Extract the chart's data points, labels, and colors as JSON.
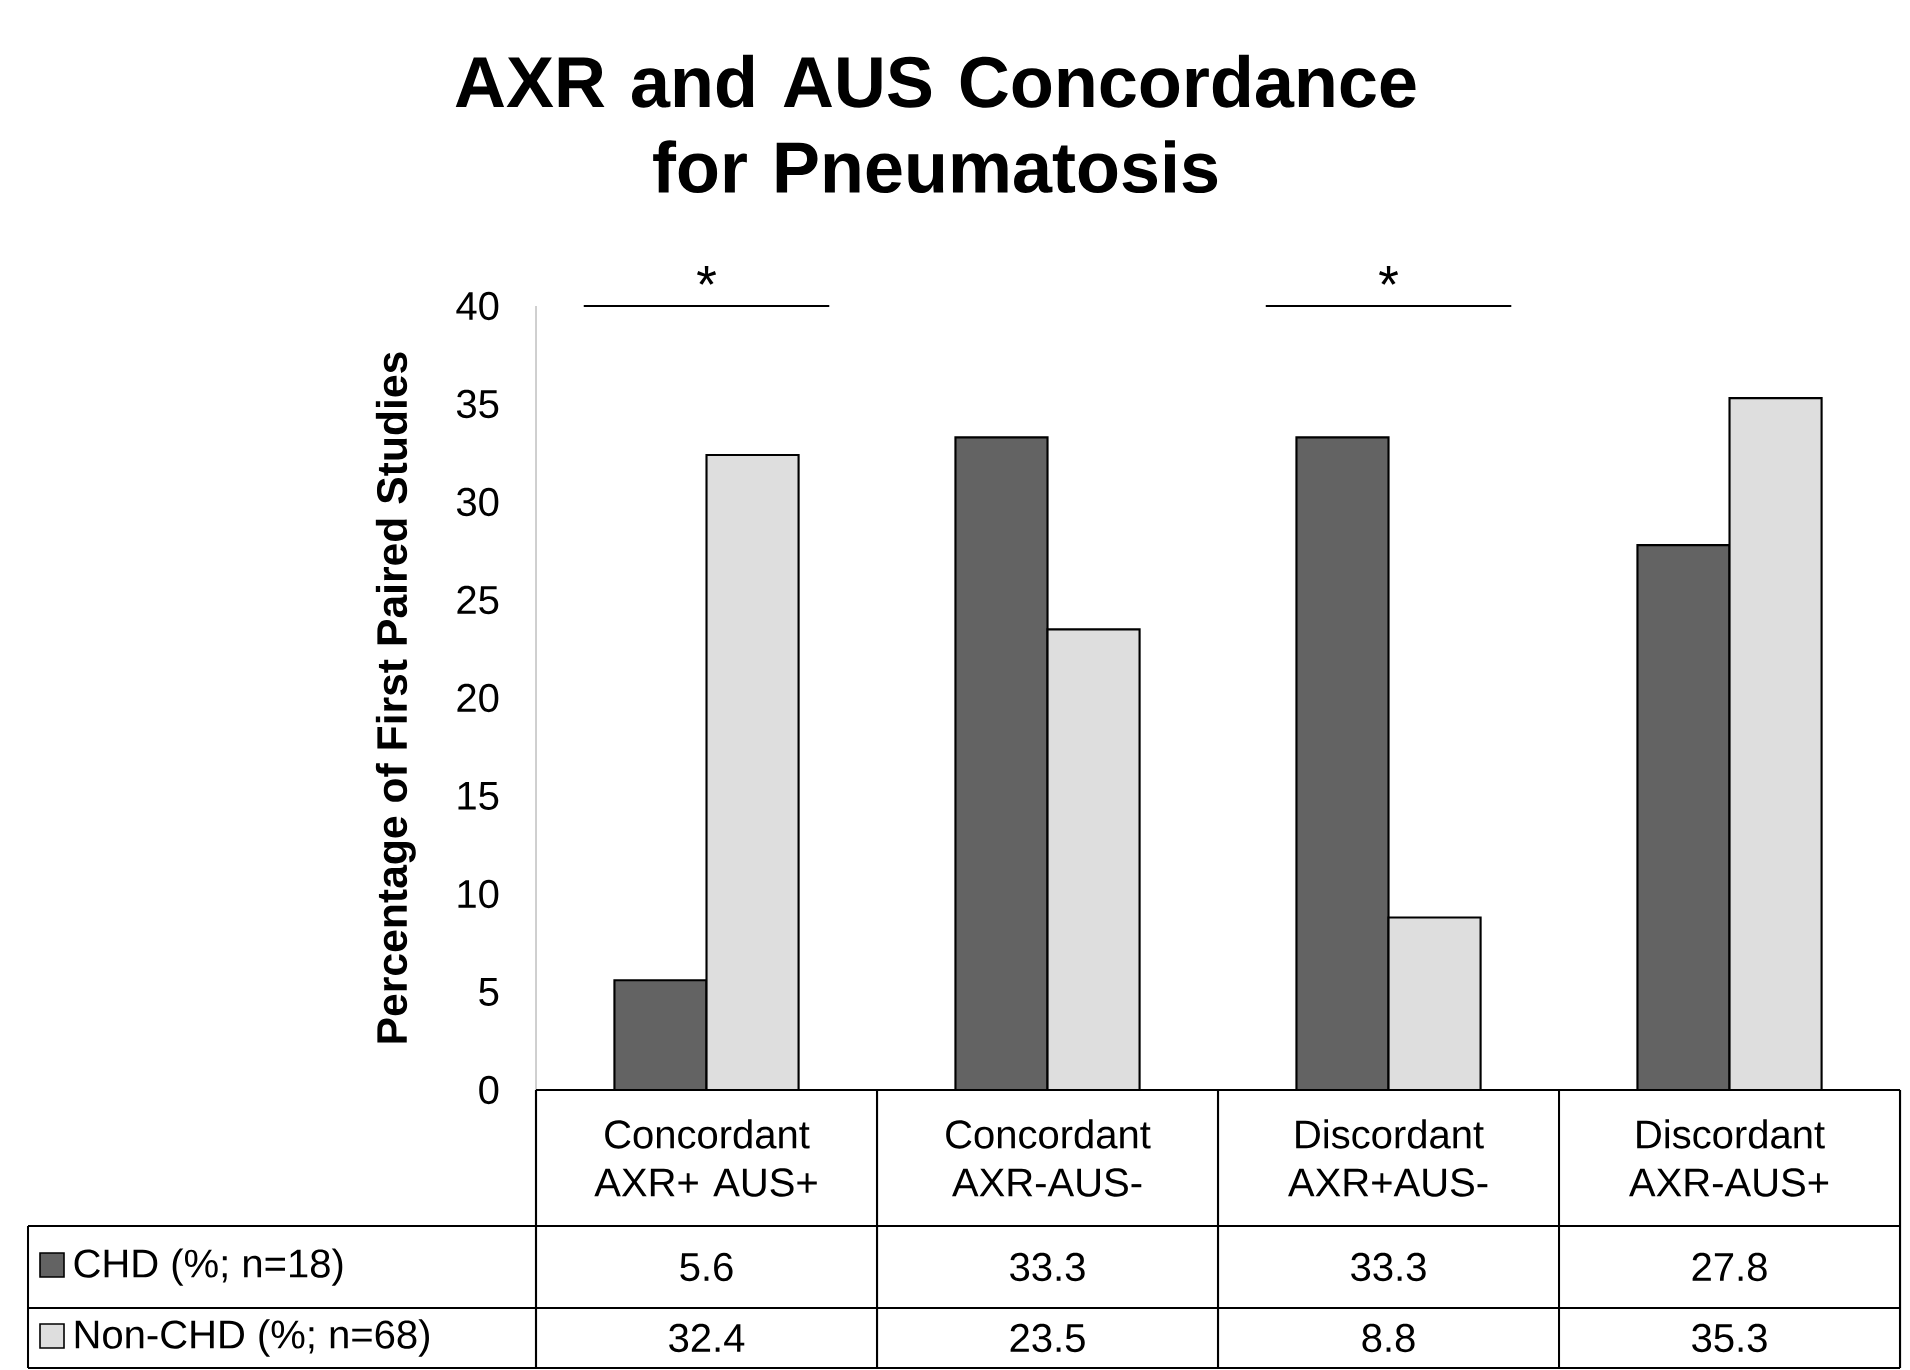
{
  "chart_data": {
    "type": "bar",
    "title": "AXR and AUS Concordance for Pneumatosis",
    "ylabel": "Percentage of First Paired Studies",
    "categories": [
      "Concordant AXR+ AUS+",
      "Concordant AXR-AUS-",
      "Discordant AXR+AUS-",
      "Discordant AXR-AUS+"
    ],
    "series": [
      {
        "name": "CHD (%; n=18)",
        "color": "#636363",
        "values": [
          5.6,
          33.3,
          33.3,
          27.8
        ]
      },
      {
        "name": "Non-CHD (%; n=68)",
        "color": "#dedede",
        "values": [
          32.4,
          23.5,
          8.8,
          35.3
        ]
      }
    ],
    "ylim": [
      0,
      40
    ],
    "yticks": [
      0,
      5,
      10,
      15,
      20,
      25,
      30,
      35,
      40
    ],
    "data_labels": true,
    "legend": "bottom left",
    "annotations": [
      "*",
      "*"
    ]
  }
}
